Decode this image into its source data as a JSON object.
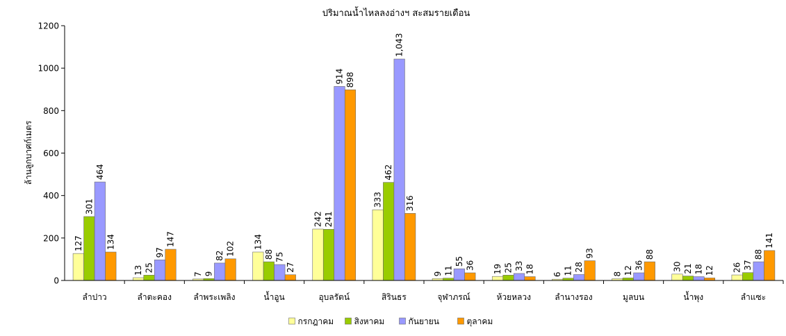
{
  "chart_data": {
    "type": "bar",
    "title": "ปริมาณน้ำไหลลงอ่างฯ สะสมรายเดือน",
    "xlabel": "",
    "ylabel": "ล้านลูกบาศก์เมตร",
    "ylim": [
      0,
      1200
    ],
    "yticks": [
      0,
      200,
      400,
      600,
      800,
      1000,
      1200
    ],
    "ytick_labels": [
      "0",
      "200",
      "400",
      "600",
      "800",
      "1000",
      "1200"
    ],
    "grid": false,
    "legend_position": "bottom",
    "categories": [
      "ลำปาว",
      "ลำตะคอง",
      "ลำพระเพลิง",
      "น้ำอูน",
      "อุบลรัตน์",
      "สิรินธร",
      "จุฬาภรณ์",
      "ห้วยหลวง",
      "ลำนางรอง",
      "มูลบน",
      "น้ำพุง",
      "ลำแซะ"
    ],
    "series": [
      {
        "name": "กรกฎาคม",
        "color": "#FFFF99",
        "values": [
          127,
          13,
          7,
          134,
          242,
          333,
          9,
          19,
          6,
          8,
          30,
          26
        ],
        "labels": [
          "127",
          "13",
          "7",
          "134",
          "242",
          "333",
          "9",
          "19",
          "6",
          "8",
          "30",
          "26"
        ]
      },
      {
        "name": "สิงหาคม",
        "color": "#99CC00",
        "values": [
          301,
          25,
          9,
          88,
          241,
          462,
          11,
          25,
          11,
          12,
          21,
          37
        ],
        "labels": [
          "301",
          "25",
          "9",
          "88",
          "241",
          "462",
          "11",
          "25",
          "11",
          "12",
          "21",
          "37"
        ]
      },
      {
        "name": "กันยายน",
        "color": "#9999FF",
        "values": [
          464,
          97,
          82,
          75,
          914,
          1043,
          55,
          33,
          28,
          36,
          18,
          88
        ],
        "labels": [
          "464",
          "97",
          "82",
          "75",
          "914",
          "1,043",
          "55",
          "33",
          "28",
          "36",
          "18",
          "88"
        ]
      },
      {
        "name": "ตุลาคม",
        "color": "#FF9900",
        "values": [
          134,
          147,
          102,
          27,
          898,
          316,
          36,
          18,
          93,
          88,
          12,
          141
        ],
        "labels": [
          "134",
          "147",
          "102",
          "27",
          "898",
          "316",
          "36",
          "18",
          "93",
          "88",
          "12",
          "141"
        ]
      }
    ]
  }
}
